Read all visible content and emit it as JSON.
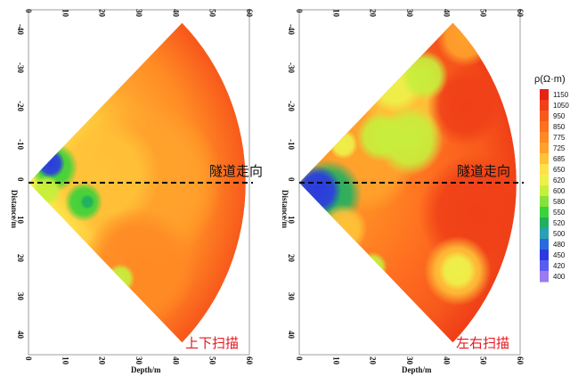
{
  "chart_data": [
    {
      "type": "heatmap",
      "panel": "left",
      "xlabel": "Depth/m",
      "ylabel": "Distance/m",
      "xlim": [
        0,
        60
      ],
      "ylim": [
        -45,
        45
      ],
      "x_ticks": [
        "0",
        "10",
        "20",
        "30",
        "40",
        "50",
        "60"
      ],
      "y_ticks": [
        "-40",
        "-30",
        "-20",
        "-10",
        "0",
        "10",
        "20",
        "30",
        "40"
      ],
      "fan_apex": [
        0,
        0
      ],
      "fan_half_angle_deg": 45,
      "fan_radius_m": 59,
      "direction_line_y": 0,
      "direction_label": "隧道走向",
      "scan_label": "上下扫描",
      "background_resistivity": 930,
      "anomalies": [
        {
          "x": 6,
          "y": -5,
          "r": 3,
          "value": 470
        },
        {
          "x": 7,
          "y": -4,
          "r": 5,
          "value": 560
        },
        {
          "x": 5,
          "y": 2,
          "r": 3,
          "value": 600
        },
        {
          "x": 15,
          "y": 5,
          "r": 4,
          "value": 560
        },
        {
          "x": 16,
          "y": 5,
          "r": 1.5,
          "value": 520
        },
        {
          "x": 25,
          "y": 25,
          "r": 3,
          "value": 600
        },
        {
          "x": 20,
          "y": -2,
          "r": 12,
          "value": 690
        },
        {
          "x": 32,
          "y": 0,
          "r": 16,
          "value": 760
        },
        {
          "x": 30,
          "y": 22,
          "r": 12,
          "value": 830
        }
      ]
    },
    {
      "type": "heatmap",
      "panel": "right",
      "xlabel": "Depth/m",
      "ylabel": "Distance/m",
      "xlim": [
        0,
        60
      ],
      "ylim": [
        -45,
        45
      ],
      "x_ticks": [
        "0",
        "10",
        "20",
        "30",
        "40",
        "50",
        "60"
      ],
      "y_ticks": [
        "-40",
        "-30",
        "-20",
        "-10",
        "0",
        "10",
        "20",
        "30",
        "40"
      ],
      "fan_apex": [
        0,
        0
      ],
      "fan_half_angle_deg": 45,
      "fan_radius_m": 59,
      "direction_line_y": 0,
      "direction_label": "隧道走向",
      "scan_label": "左右扫描",
      "background_resistivity": 940,
      "anomalies": [
        {
          "x": 5,
          "y": 2,
          "r": 5,
          "value": 470
        },
        {
          "x": 8,
          "y": 3,
          "r": 7,
          "value": 540
        },
        {
          "x": 26,
          "y": -26,
          "r": 6,
          "value": 620
        },
        {
          "x": 34,
          "y": -28,
          "r": 5,
          "value": 610
        },
        {
          "x": 22,
          "y": -12,
          "r": 5,
          "value": 610
        },
        {
          "x": 30,
          "y": -11,
          "r": 7,
          "value": 610
        },
        {
          "x": 29,
          "y": -20,
          "r": 9,
          "value": 690
        },
        {
          "x": 24,
          "y": -18,
          "r": 14,
          "value": 760
        },
        {
          "x": 12,
          "y": -10,
          "r": 3,
          "value": 620
        },
        {
          "x": 18,
          "y": -5,
          "r": 10,
          "value": 760
        },
        {
          "x": 45,
          "y": -38,
          "r": 6,
          "value": 760
        },
        {
          "x": 12,
          "y": 12,
          "r": 5,
          "value": 720
        },
        {
          "x": 20,
          "y": 22,
          "r": 3,
          "value": 600
        },
        {
          "x": 43,
          "y": 23,
          "r": 4,
          "value": 620
        },
        {
          "x": 43,
          "y": 23,
          "r": 7,
          "value": 720
        },
        {
          "x": 48,
          "y": 8,
          "r": 12,
          "value": 1050
        },
        {
          "x": 45,
          "y": -20,
          "r": 8,
          "value": 1050
        }
      ]
    }
  ],
  "legend": {
    "title": "ρ(Ω·m)",
    "ticks": [
      "1150",
      "1050",
      "950",
      "850",
      "775",
      "725",
      "685",
      "650",
      "620",
      "600",
      "580",
      "550",
      "520",
      "500",
      "480",
      "450",
      "420",
      "400"
    ]
  },
  "colors": {
    "scale_low_to_high": [
      "#9a7bf0",
      "#5a5cf0",
      "#2c3ae0",
      "#2a6adc",
      "#2aa0b4",
      "#21b060",
      "#3dd23a",
      "#86e23a",
      "#c8ee3c",
      "#eef04a",
      "#ffe14a",
      "#ffc238",
      "#ffa22c",
      "#ff8a24",
      "#ff7020",
      "#f85a1c",
      "#f04018",
      "#e82216"
    ],
    "tick_values_low_to_high": [
      400,
      420,
      450,
      480,
      500,
      520,
      550,
      580,
      600,
      620,
      650,
      685,
      725,
      775,
      850,
      950,
      1050,
      1150
    ]
  }
}
